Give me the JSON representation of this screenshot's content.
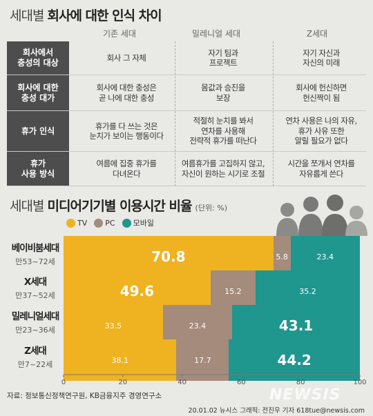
{
  "header": {
    "title_thin": "세대별",
    "title_bold": "회사에 대한 인식 차이"
  },
  "table": {
    "columns": [
      "기존 세대",
      "밀레니얼 세대",
      "Z세대"
    ],
    "rows": [
      {
        "label": "회사에서\n충성의 대상",
        "cells": [
          "회사 그 자체",
          "자기 팀과\n프로젝트",
          "자기 자신과\n자신의 미래"
        ]
      },
      {
        "label": "회사에 대한\n충성 대가",
        "cells": [
          "회사에 대한 충성은\n곧 나에 대한 충성",
          "몸값과 승진을\n보장",
          "회사에 헌신하면\n헌신짝이 됨"
        ]
      },
      {
        "label": "휴가 인식",
        "cells": [
          "휴가를 다 쓰는 것은\n눈치가 보이는 행동이다",
          "적절히 눈치를 봐서\n연차를 사용해\n전략적 휴가를 떠난다",
          "연차 사용은 나의 자유,\n휴가 사유 또한\n알릴 필요가 없다"
        ]
      },
      {
        "label": "휴가\n사용 방식",
        "cells": [
          "여름에 집중 휴가를\n다녀온다",
          "여름휴가를 고집하지 않고,\n자신이 원하는 시기로 조절",
          "시간을 쪼개서 연차를\n자유롭게 쓴다"
        ]
      }
    ]
  },
  "chart_title": {
    "thin": "세대별",
    "bold": "미디어기기별 이용시간 비율",
    "unit": "(단위: %)"
  },
  "colors": {
    "tv": "#efb322",
    "pc": "#a48b7c",
    "mobile": "#1f968e"
  },
  "chart_data": {
    "type": "bar",
    "orientation": "horizontal",
    "stacked": true,
    "categories": [
      "베이비붐세대",
      "X세대",
      "밀레니얼세대",
      "Z세대"
    ],
    "category_subtitles": [
      "만53~72세",
      "만37~52세",
      "만23~36세",
      "만7~22세"
    ],
    "series": [
      {
        "name": "TV",
        "values": [
          70.8,
          49.6,
          33.5,
          38.1
        ]
      },
      {
        "name": "PC",
        "values": [
          5.8,
          15.2,
          23.4,
          17.7
        ]
      },
      {
        "name": "모바일",
        "values": [
          23.4,
          35.2,
          43.1,
          44.2
        ]
      }
    ],
    "highlight_labels": [
      [
        true,
        false,
        false
      ],
      [
        true,
        false,
        false
      ],
      [
        false,
        false,
        true
      ],
      [
        false,
        false,
        true
      ]
    ],
    "xlim": [
      0,
      100
    ],
    "xticks": [
      "0",
      "20",
      "40",
      "60",
      "80",
      "100"
    ],
    "legend": "top-left"
  },
  "footer": {
    "source": "자료: 정보통신정책연구원, KB금융지주 경영연구소",
    "credit": "20.01.02  뉴시스 그래픽: 전진우 기자 618tue@newsis.com",
    "watermark": "NEWSIS"
  }
}
